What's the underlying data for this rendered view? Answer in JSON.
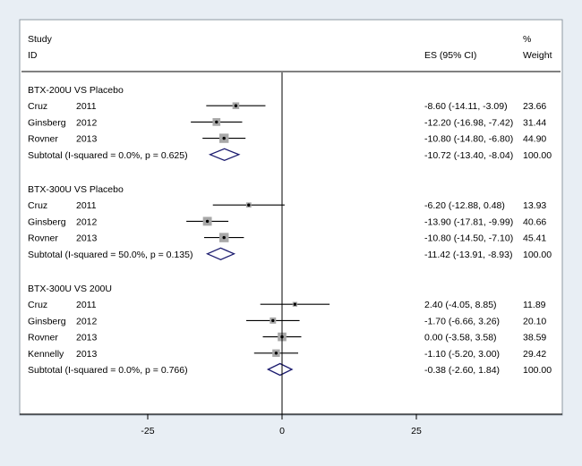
{
  "chart_data": {
    "type": "forest",
    "header": {
      "study_line1": "Study",
      "study_line2": "ID",
      "es_label": "ES (95% CI)",
      "weight_line1": "%",
      "weight_line2": "Weight"
    },
    "x_ticks": [
      -25,
      0,
      25
    ],
    "x_tick_labels": [
      "-25",
      "0",
      "25"
    ],
    "xlim": [
      -49,
      50
    ],
    "colors": {
      "background_outer": "#e8eef4",
      "panel": "#ffffff",
      "diamond": "#1a1a6e",
      "box": "#a8a8a8",
      "line": "#000000"
    },
    "groups": [
      {
        "title": "BTX-200U VS Placebo",
        "studies": [
          {
            "name": "Cruz",
            "year": "2011",
            "es": -8.6,
            "lo": -14.11,
            "hi": -3.09,
            "ci_text": "-8.60 (-14.11, -3.09)",
            "weight": 23.66,
            "weight_text": "23.66"
          },
          {
            "name": "Ginsberg",
            "year": "2012",
            "es": -12.2,
            "lo": -16.98,
            "hi": -7.42,
            "ci_text": "-12.20 (-16.98, -7.42)",
            "weight": 31.44,
            "weight_text": "31.44"
          },
          {
            "name": "Rovner",
            "year": "2013",
            "es": -10.8,
            "lo": -14.8,
            "hi": -6.8,
            "ci_text": "-10.80 (-14.80, -6.80)",
            "weight": 44.9,
            "weight_text": "44.90"
          }
        ],
        "subtotal": {
          "label": "Subtotal  (I-squared = 0.0%, p = 0.625)",
          "es": -10.72,
          "lo": -13.4,
          "hi": -8.04,
          "ci_text": "-10.72 (-13.40, -8.04)",
          "weight_text": "100.00"
        }
      },
      {
        "title": "BTX-300U VS Placebo",
        "studies": [
          {
            "name": "Cruz",
            "year": "2011",
            "es": -6.2,
            "lo": -12.88,
            "hi": 0.48,
            "ci_text": "-6.20 (-12.88, 0.48)",
            "weight": 13.93,
            "weight_text": "13.93"
          },
          {
            "name": "Ginsberg",
            "year": "2012",
            "es": -13.9,
            "lo": -17.81,
            "hi": -9.99,
            "ci_text": "-13.90 (-17.81, -9.99)",
            "weight": 40.66,
            "weight_text": "40.66"
          },
          {
            "name": "Rovner",
            "year": "2013",
            "es": -10.8,
            "lo": -14.5,
            "hi": -7.1,
            "ci_text": "-10.80 (-14.50, -7.10)",
            "weight": 45.41,
            "weight_text": "45.41"
          }
        ],
        "subtotal": {
          "label": "Subtotal  (I-squared = 50.0%, p = 0.135)",
          "es": -11.42,
          "lo": -13.91,
          "hi": -8.93,
          "ci_text": "-11.42 (-13.91, -8.93)",
          "weight_text": "100.00"
        }
      },
      {
        "title": "BTX-300U VS 200U",
        "studies": [
          {
            "name": "Cruz",
            "year": "2011",
            "es": 2.4,
            "lo": -4.05,
            "hi": 8.85,
            "ci_text": "2.40 (-4.05, 8.85)",
            "weight": 11.89,
            "weight_text": "11.89"
          },
          {
            "name": "Ginsberg",
            "year": "2012",
            "es": -1.7,
            "lo": -6.66,
            "hi": 3.26,
            "ci_text": "-1.70 (-6.66, 3.26)",
            "weight": 20.1,
            "weight_text": "20.10"
          },
          {
            "name": "Rovner",
            "year": "2013",
            "es": 0.0,
            "lo": -3.58,
            "hi": 3.58,
            "ci_text": "0.00 (-3.58, 3.58)",
            "weight": 38.59,
            "weight_text": "38.59"
          },
          {
            "name": "Kennelly",
            "year": "2013",
            "es": -1.1,
            "lo": -5.2,
            "hi": 3.0,
            "ci_text": "-1.10 (-5.20, 3.00)",
            "weight": 29.42,
            "weight_text": "29.42"
          }
        ],
        "subtotal": {
          "label": "Subtotal  (I-squared = 0.0%, p = 0.766)",
          "es": -0.38,
          "lo": -2.6,
          "hi": 1.84,
          "ci_text": "-0.38 (-2.60, 1.84)",
          "weight_text": "100.00"
        }
      }
    ]
  }
}
